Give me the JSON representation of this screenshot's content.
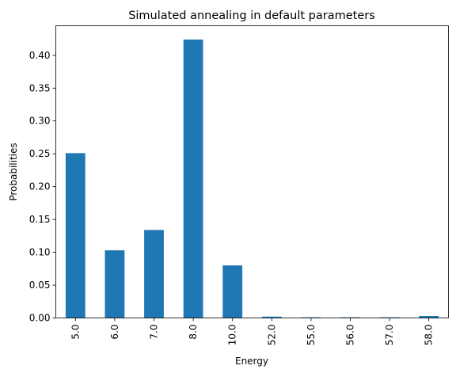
{
  "chart_data": {
    "type": "bar",
    "title": "Simulated annealing in default parameters",
    "xlabel": "Energy",
    "ylabel": "Probabilities",
    "categories": [
      "5.0",
      "6.0",
      "7.0",
      "8.0",
      "10.0",
      "52.0",
      "55.0",
      "56.0",
      "57.0",
      "58.0"
    ],
    "values": [
      0.251,
      0.103,
      0.134,
      0.424,
      0.08,
      0.002,
      0.001,
      0.001,
      0.001,
      0.003
    ],
    "ylim": [
      0,
      0.445
    ],
    "yticks": [
      "0.00",
      "0.05",
      "0.10",
      "0.15",
      "0.20",
      "0.25",
      "0.30",
      "0.35",
      "0.40"
    ],
    "ytick_values": [
      0.0,
      0.05,
      0.1,
      0.15,
      0.2,
      0.25,
      0.3,
      0.35,
      0.4
    ],
    "grid": false,
    "bar_color": "#1f77b4"
  }
}
